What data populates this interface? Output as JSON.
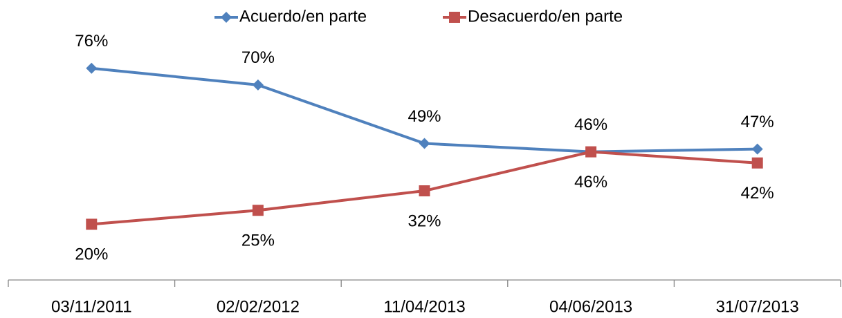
{
  "chart_data": {
    "type": "line",
    "categories": [
      "03/11/2011",
      "02/02/2012",
      "11/04/2013",
      "04/06/2013",
      "31/07/2013"
    ],
    "series": [
      {
        "name": "Acuerdo/en parte",
        "color": "#4f81bd",
        "marker": "diamond",
        "values": [
          76,
          70,
          49,
          46,
          47
        ],
        "value_labels": [
          "76%",
          "70%",
          "49%",
          "46%",
          "47%"
        ]
      },
      {
        "name": "Desacuerdo/en parte",
        "color": "#c0504d",
        "marker": "square",
        "values": [
          20,
          25,
          32,
          46,
          42
        ],
        "value_labels": [
          "20%",
          "25%",
          "32%",
          "46%",
          "42%"
        ]
      }
    ],
    "ylim": [
      0,
      100
    ],
    "legend": "top"
  }
}
